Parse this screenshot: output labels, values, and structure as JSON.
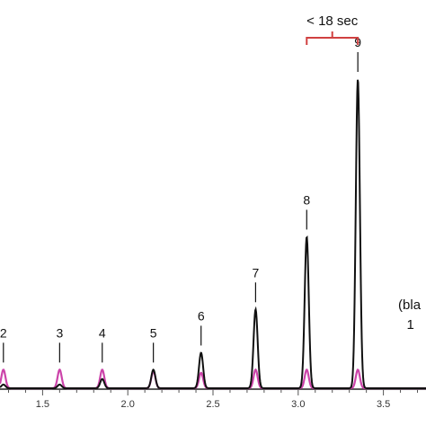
{
  "chart_data": {
    "type": "line",
    "xlim": [
      1.25,
      3.75
    ],
    "x_ticks": [
      "1.5",
      "2.0",
      "2.5",
      "3.0",
      "3.5"
    ],
    "x_tick_values": [
      1.5,
      2.0,
      2.5,
      3.0,
      3.5
    ],
    "y_label_unit": "",
    "series": [
      {
        "color": "#111111",
        "peaks": [
          {
            "label": "2",
            "x": 1.27,
            "height": 0.012
          },
          {
            "label": "3",
            "x": 1.6,
            "height": 0.012
          },
          {
            "label": "4",
            "x": 1.85,
            "height": 0.03
          },
          {
            "label": "5",
            "x": 2.15,
            "height": 0.06
          },
          {
            "label": "6",
            "x": 2.43,
            "height": 0.115
          },
          {
            "label": "7",
            "x": 2.75,
            "height": 0.255
          },
          {
            "label": "8",
            "x": 3.05,
            "height": 0.49
          },
          {
            "label": "9",
            "x": 3.35,
            "height": 1.0
          }
        ]
      },
      {
        "color": "#cc44aa",
        "peaks": [
          {
            "label": "2",
            "x": 1.27,
            "height": 0.06
          },
          {
            "label": "3",
            "x": 1.6,
            "height": 0.06
          },
          {
            "label": "4",
            "x": 1.85,
            "height": 0.06
          },
          {
            "label": "5",
            "x": 2.15,
            "height": 0.055
          },
          {
            "label": "6",
            "x": 2.43,
            "height": 0.05
          },
          {
            "label": "7",
            "x": 2.75,
            "height": 0.06
          },
          {
            "label": "8",
            "x": 3.05,
            "height": 0.06
          },
          {
            "label": "9",
            "x": 3.35,
            "height": 0.06
          }
        ]
      }
    ],
    "peak_labels": [
      "2",
      "3",
      "4",
      "5",
      "6",
      "7",
      "8",
      "9"
    ],
    "bracket_annotation": {
      "text": "< 18 sec",
      "from": 3.05,
      "to": 3.35
    },
    "partial_label": {
      "text": "(bla",
      "x": 3.65
    },
    "partial_label_2": {
      "text": "1",
      "x": 3.7
    }
  }
}
